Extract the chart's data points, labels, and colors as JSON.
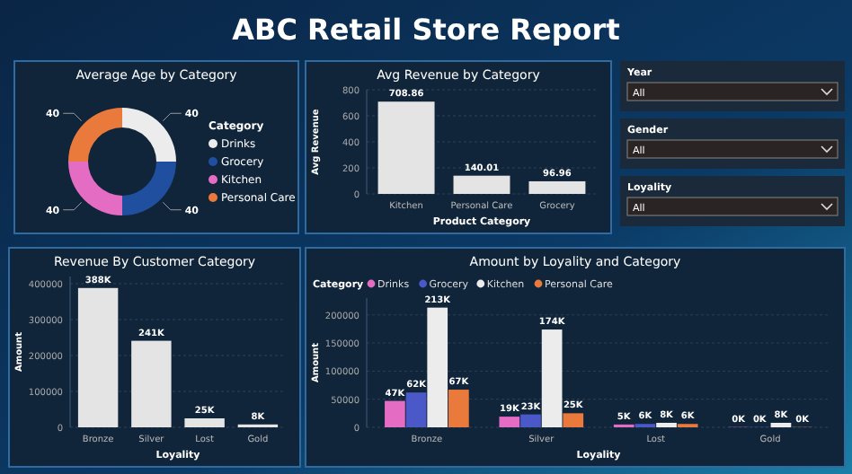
{
  "chart_data": [
    {
      "type": "other",
      "title": "ABC Retail Store Report"
    },
    {
      "type": "donut",
      "title": "Average Age by Category",
      "legend_title": "Category",
      "legend": "right",
      "data_labels": true,
      "categories": [
        "Drinks",
        "Grocery",
        "Kitchen",
        "Personal Care"
      ],
      "values": [
        40,
        40,
        40,
        40
      ],
      "colors": [
        "#ececec",
        "#1f4f9e",
        "#e46cc3",
        "#ea7a3c"
      ]
    },
    {
      "type": "bar",
      "title": "Avg Revenue by Category",
      "xlabel": "Product Category",
      "ylabel": "Avg Revenue",
      "categories": [
        "Kitchen",
        "Personal Care",
        "Grocery"
      ],
      "values": [
        708.86,
        140.01,
        96.96
      ],
      "color": "#e4e4e4",
      "data_labels": true,
      "ylim": [
        0,
        800
      ],
      "yticks": [
        0,
        200,
        400,
        600,
        800
      ],
      "grid": "y"
    },
    {
      "type": "other",
      "annotations": [
        "Year",
        "All",
        "Gender",
        "All",
        "Loyality",
        "All"
      ]
    },
    {
      "type": "bar",
      "title": "Revenue By Customer Category",
      "xlabel": "Loyality",
      "ylabel": "Amount",
      "categories": [
        "Bronze",
        "Silver",
        "Lost",
        "Gold"
      ],
      "values": [
        388000,
        241000,
        25000,
        8000
      ],
      "value_labels": [
        "388K",
        "241K",
        "25K",
        "8K"
      ],
      "color": "#e4e4e4",
      "ylim": [
        0,
        420000
      ],
      "yticks": [
        0,
        100000,
        200000,
        300000,
        400000
      ],
      "grid": "y"
    },
    {
      "type": "bar",
      "title": "Amount by Loyality and Category",
      "xlabel": "Loyality",
      "ylabel": "Amount",
      "legend_title": "Category",
      "legend": "top left",
      "categories": [
        "Bronze",
        "Silver",
        "Lost",
        "Gold"
      ],
      "ylim": [
        0,
        230000
      ],
      "yticks": [
        0,
        50000,
        100000,
        150000,
        200000
      ],
      "grid": "y",
      "series": [
        {
          "name": "Drinks",
          "color": "#e46cc3",
          "values": [
            47000,
            19000,
            5000,
            400
          ],
          "value_labels": [
            "47K",
            "19K",
            "5K",
            "0K"
          ]
        },
        {
          "name": "Grocery",
          "color": "#4a58c8",
          "values": [
            62000,
            23000,
            6000,
            400
          ],
          "value_labels": [
            "62K",
            "23K",
            "6K",
            "0K"
          ]
        },
        {
          "name": "Kitchen",
          "color": "#ececec",
          "values": [
            213000,
            174000,
            8000,
            8000
          ],
          "value_labels": [
            "213K",
            "174K",
            "8K",
            "8K"
          ]
        },
        {
          "name": "Personal Care",
          "color": "#ea7a3c",
          "values": [
            67000,
            25000,
            6000,
            400
          ],
          "value_labels": [
            "67K",
            "25K",
            "6K",
            "0K"
          ]
        }
      ]
    }
  ]
}
